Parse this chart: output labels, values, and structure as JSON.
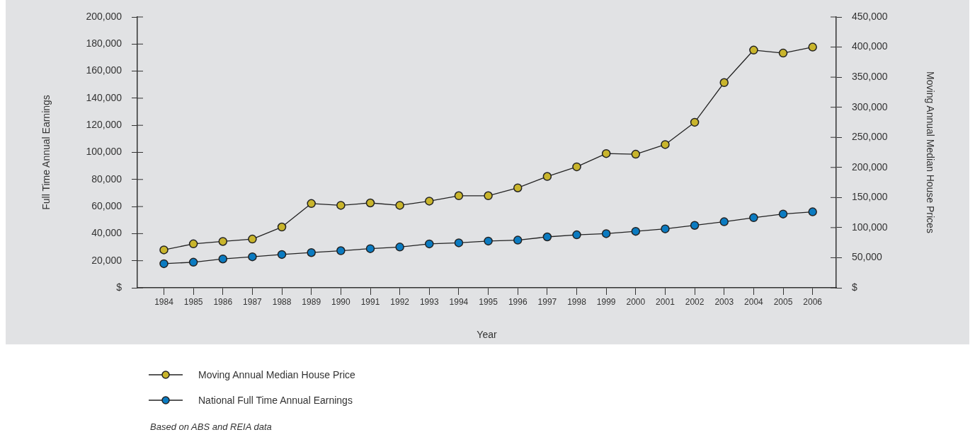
{
  "chart_data": {
    "type": "line",
    "xlabel": "Year",
    "ylabel": "Full Time Annual Earnings",
    "y2label": "Moving Annual Median House Prices",
    "x": [
      1984,
      1985,
      1986,
      1987,
      1988,
      1989,
      1990,
      1991,
      1992,
      1993,
      1994,
      1995,
      1996,
      1997,
      1998,
      1999,
      2000,
      2001,
      2002,
      2003,
      2004,
      2005,
      2006
    ],
    "xlim": [
      1983.1,
      2006.8
    ],
    "xticks": [
      1984,
      1985,
      1986,
      1987,
      1988,
      1989,
      1990,
      1991,
      1992,
      1993,
      1994,
      1995,
      1996,
      1997,
      1998,
      1999,
      2000,
      2001,
      2002,
      2003,
      2004,
      2005,
      2006
    ],
    "series": [
      {
        "name": "Moving Annual Median House Price",
        "color": "#c9b52c",
        "axis": "y2",
        "values": [
          63000,
          73000,
          77000,
          81000,
          101000,
          140000,
          137000,
          141000,
          137000,
          144000,
          153000,
          153000,
          166000,
          185000,
          201000,
          223000,
          222000,
          238000,
          275000,
          341000,
          395000,
          390000,
          400000
        ]
      },
      {
        "name": "National Full Time Annual Earnings",
        "color": "#0b7bc1",
        "values": [
          17800,
          18900,
          21300,
          22900,
          24600,
          26000,
          27400,
          28900,
          30100,
          32400,
          33200,
          34500,
          35200,
          37600,
          39100,
          40000,
          41700,
          43500,
          46100,
          48800,
          51800,
          54500,
          56100
        ]
      }
    ],
    "ylim": [
      0,
      200000
    ],
    "yticks": [
      {
        "value": 0,
        "label": "$"
      },
      {
        "value": 20000,
        "label": "20,000"
      },
      {
        "value": 40000,
        "label": "40,000"
      },
      {
        "value": 60000,
        "label": "60,000"
      },
      {
        "value": 80000,
        "label": "80,000"
      },
      {
        "value": 100000,
        "label": "100,000"
      },
      {
        "value": 120000,
        "label": "120,000"
      },
      {
        "value": 140000,
        "label": "140,000"
      },
      {
        "value": 160000,
        "label": "160,000"
      },
      {
        "value": 180000,
        "label": "180,000"
      },
      {
        "value": 200000,
        "label": "200,000"
      }
    ],
    "y2lim": [
      0,
      450000
    ],
    "y2ticks": [
      {
        "value": 0,
        "label": "$"
      },
      {
        "value": 50000,
        "label": "50,000"
      },
      {
        "value": 100000,
        "label": "100,000"
      },
      {
        "value": 150000,
        "label": "150,000"
      },
      {
        "value": 200000,
        "label": "200,000"
      },
      {
        "value": 250000,
        "label": "250,000"
      },
      {
        "value": 300000,
        "label": "300,000"
      },
      {
        "value": 350000,
        "label": "350,000"
      },
      {
        "value": 400000,
        "label": "400,000"
      },
      {
        "value": 450000,
        "label": "450,000"
      }
    ],
    "grid": false,
    "legend": "bottom",
    "marker": "circle",
    "line_style": "solid",
    "annotations": [
      "Based on ABS and REIA data"
    ]
  }
}
